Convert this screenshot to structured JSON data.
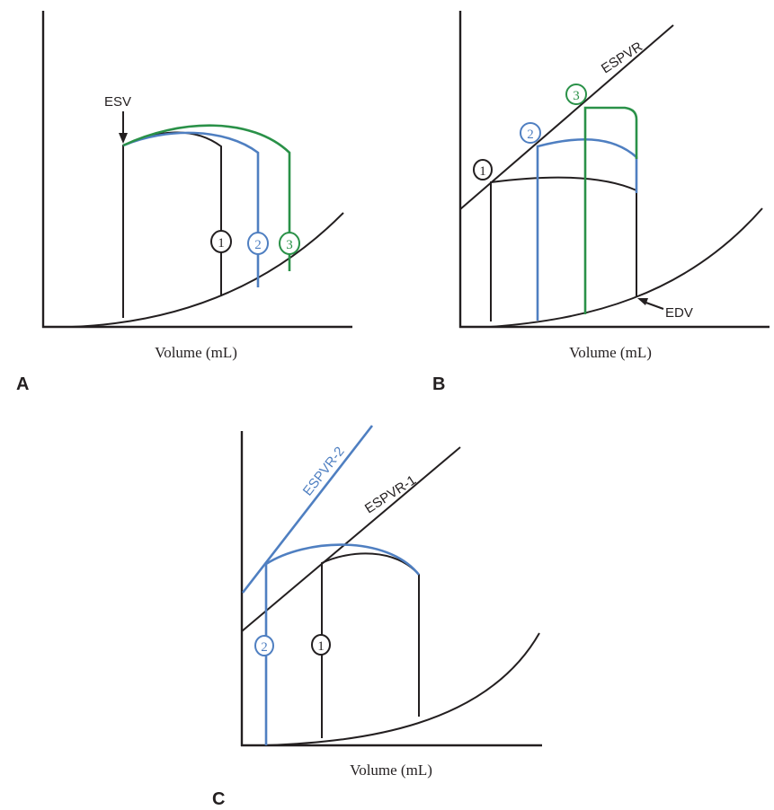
{
  "panels": {
    "a": {
      "letter": "A",
      "xlabel": "Volume (mL)",
      "esv_label": "ESV",
      "loops": [
        {
          "num": "1",
          "color": "#231f20"
        },
        {
          "num": "2",
          "color": "#4f7fc1"
        },
        {
          "num": "3",
          "color": "#2a9148"
        }
      ]
    },
    "b": {
      "letter": "B",
      "xlabel": "Volume (mL)",
      "espvr_label": "ESPVR",
      "edv_label": "EDV",
      "loops": [
        {
          "num": "1",
          "color": "#231f20"
        },
        {
          "num": "2",
          "color": "#4f7fc1"
        },
        {
          "num": "3",
          "color": "#2a9148"
        }
      ]
    },
    "c": {
      "letter": "C",
      "xlabel": "Volume (mL)",
      "espvr1_label": "ESPVR-1",
      "espvr2_label": "ESPVR-2",
      "loops": [
        {
          "num": "1",
          "color": "#231f20"
        },
        {
          "num": "2",
          "color": "#4f7fc1"
        }
      ]
    }
  },
  "colors": {
    "black": "#231f20",
    "blue": "#4f7fc1",
    "green": "#2a9148"
  }
}
